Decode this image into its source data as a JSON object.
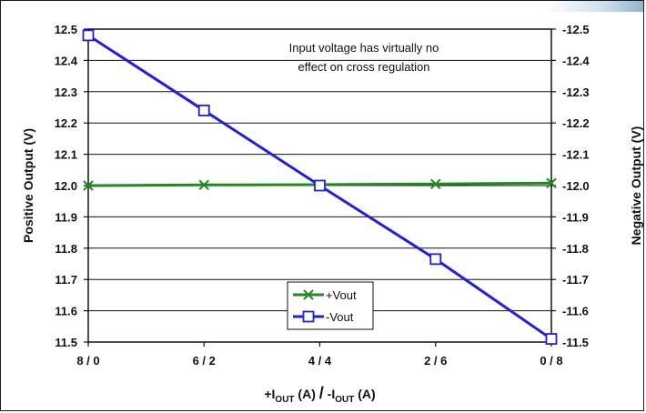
{
  "chart_data": {
    "type": "line",
    "categories": [
      "8 / 0",
      "6 / 2",
      "4 / 4",
      "2 / 6",
      "0 / 8"
    ],
    "x_axis": {
      "label_parts": [
        "+I",
        "OUT",
        " (A) ",
        "/",
        " -I",
        "OUT",
        " (A)"
      ]
    },
    "y_left": {
      "label": "Positive Output (V)",
      "ylim": [
        11.5,
        12.5
      ],
      "ticks": [
        "11.5",
        "11.6",
        "11.7",
        "11.8",
        "11.9",
        "12.0",
        "12.1",
        "12.2",
        "12.3",
        "12.4",
        "12.5"
      ]
    },
    "y_right": {
      "label": "Negative Output (V)",
      "ylim": [
        -11.5,
        -12.5
      ],
      "ticks": [
        "-11.5",
        "-11.6",
        "-11.7",
        "-11.8",
        "-11.9",
        "-12.0",
        "-12.1",
        "-12.2",
        "-12.3",
        "-12.4",
        "-12.5"
      ]
    },
    "series": [
      {
        "name": "+Vout",
        "axis": "left",
        "values": [
          12.0,
          12.002,
          12.003,
          12.005,
          12.008
        ],
        "color": "#1f8a1f",
        "marker": "x"
      },
      {
        "name": "-Vout",
        "axis": "right",
        "values": [
          -12.48,
          -12.24,
          -12.0,
          -11.765,
          -11.51
        ],
        "color": "#1f1fe0",
        "marker": "square"
      }
    ],
    "annotation": [
      "Input voltage has virtually no",
      "effect on cross regulation"
    ],
    "grid": true,
    "legend_position": "bottom-center"
  }
}
